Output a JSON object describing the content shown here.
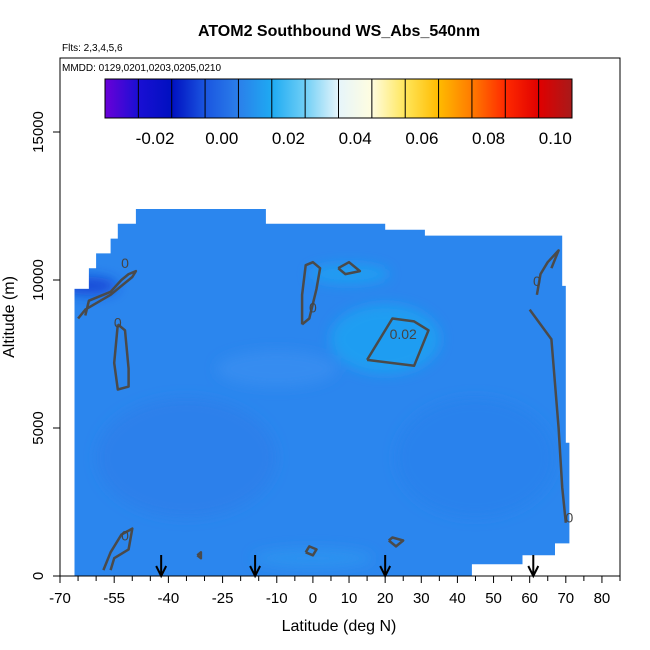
{
  "chart_data": {
    "type": "heatmap",
    "title": "ATOM2 Southbound WS_Abs_540nm",
    "subtitle_flights": "Flts: 2,3,4,5,6",
    "subtitle_dates": "MMDD: 0129,0201,0203,0205,0210",
    "xlabel": "Latitude (deg N)",
    "ylabel": "Altitude (m)",
    "xlim": [
      -70,
      85
    ],
    "ylim": [
      0,
      17500
    ],
    "x_ticks": [
      "-70",
      "-55",
      "-40",
      "-25",
      "-10",
      "0",
      "10",
      "20",
      "30",
      "40",
      "50",
      "60",
      "70",
      "80"
    ],
    "x_tick_values": [
      -70,
      -55,
      -40,
      -25,
      -10,
      0,
      10,
      20,
      30,
      40,
      50,
      60,
      70,
      80
    ],
    "x_minor_ticks": [
      -65,
      -60,
      -50,
      -45,
      -35,
      -30,
      -20,
      -15,
      -5,
      5,
      15,
      25,
      35,
      45,
      55,
      65,
      75,
      85
    ],
    "y_ticks": [
      "0",
      "5000",
      "10000",
      "15000"
    ],
    "y_tick_values": [
      0,
      5000,
      10000,
      15000
    ],
    "colorbar": {
      "range": [
        -0.035,
        0.105
      ],
      "tick_labels": [
        "-0.02",
        "0.00",
        "0.02",
        "0.04",
        "0.06",
        "0.08",
        "0.10"
      ],
      "tick_values": [
        -0.02,
        0.0,
        0.02,
        0.04,
        0.06,
        0.08,
        0.1
      ],
      "colors": [
        "#6a00d8",
        "#1a0fd4",
        "#0010c0",
        "#1a55e0",
        "#2b7fea",
        "#1eaaf2",
        "#70cff6",
        "#e6f5fb",
        "#fffde0",
        "#ffe65a",
        "#ffbb00",
        "#ff7a00",
        "#ff2a00",
        "#e00000",
        "#a81a1a"
      ]
    },
    "field_color": "#2b86ee",
    "contour_labels": [
      {
        "text": "0",
        "lat": -52,
        "alt": 10400
      },
      {
        "text": "0",
        "lat": -54,
        "alt": 8400
      },
      {
        "text": "0",
        "lat": 0,
        "alt": 8900
      },
      {
        "text": "0.02",
        "lat": 25,
        "alt": 8000
      },
      {
        "text": "0",
        "lat": 62,
        "alt": 9800
      },
      {
        "text": "0",
        "lat": 71,
        "alt": 1800
      },
      {
        "text": "0",
        "lat": -52,
        "alt": 1200
      }
    ],
    "flight_arrows_lat": [
      -42,
      -16,
      20,
      61
    ]
  }
}
